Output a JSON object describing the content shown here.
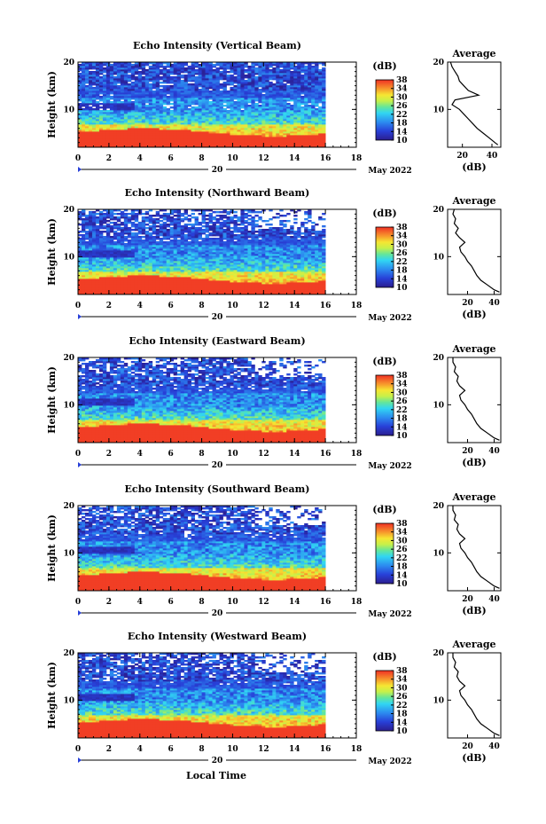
{
  "figure": {
    "xlabel": "Local Time",
    "date_label": "May 2022",
    "day_label": "20",
    "colorbar_label": "(dB)",
    "profile_title": "Average",
    "profile_xlabel": "(dB)"
  },
  "chart_data": [
    {
      "type": "heatmap",
      "title": "Echo Intensity (Vertical Beam)",
      "ylabel": "Height (km)",
      "xlabel": "",
      "x_ticks": [
        0,
        2,
        4,
        6,
        8,
        10,
        12,
        14,
        16,
        18
      ],
      "y_ticks": [
        10,
        20
      ],
      "xlim": [
        0,
        18
      ],
      "ylim": [
        2,
        20
      ],
      "data_xlim": [
        0,
        16
      ],
      "colorbar": {
        "ticks": [
          10,
          14,
          18,
          22,
          26,
          30,
          34,
          38
        ],
        "range": [
          10,
          38
        ],
        "unit": "dB"
      },
      "profile": {
        "title": "Average",
        "xlabel": "(dB)",
        "x_ticks": [
          20,
          40
        ],
        "xlim": [
          10,
          46
        ],
        "height_km": [
          2.5,
          3,
          4,
          5,
          6,
          7,
          8,
          9,
          10,
          11,
          12,
          13,
          14,
          15,
          16,
          17,
          18,
          19,
          20
        ],
        "mean_db": [
          44,
          42,
          38,
          34,
          30,
          27,
          24,
          21,
          18,
          13,
          15,
          31,
          24,
          21,
          18,
          17,
          15,
          13,
          12
        ]
      }
    },
    {
      "type": "heatmap",
      "title": "Echo Intensity (Northward Beam)",
      "ylabel": "Height (km)",
      "xlabel": "",
      "x_ticks": [
        0,
        2,
        4,
        6,
        8,
        10,
        12,
        14,
        16,
        18
      ],
      "y_ticks": [
        10,
        20
      ],
      "xlim": [
        0,
        18
      ],
      "ylim": [
        2,
        20
      ],
      "data_xlim": [
        0,
        16
      ],
      "colorbar": {
        "ticks": [
          10,
          14,
          18,
          22,
          26,
          30,
          34,
          38
        ],
        "range": [
          10,
          38
        ],
        "unit": "dB"
      },
      "profile": {
        "title": "Average",
        "xlabel": "(dB)",
        "x_ticks": [
          20,
          40
        ],
        "xlim": [
          5,
          45
        ],
        "height_km": [
          2.5,
          3,
          4,
          5,
          6,
          7,
          8,
          9,
          10,
          11,
          12,
          13,
          14,
          15,
          16,
          17,
          18,
          19,
          20
        ],
        "mean_db": [
          44,
          40,
          35,
          30,
          27,
          25,
          23,
          20,
          18,
          15,
          14,
          18,
          14,
          11,
          13,
          10,
          11,
          9,
          10
        ]
      }
    },
    {
      "type": "heatmap",
      "title": "Echo Intensity (Eastward Beam)",
      "ylabel": "Height (km)",
      "xlabel": "",
      "x_ticks": [
        0,
        2,
        4,
        6,
        8,
        10,
        12,
        14,
        16,
        18
      ],
      "y_ticks": [
        10,
        20
      ],
      "xlim": [
        0,
        18
      ],
      "ylim": [
        2,
        20
      ],
      "data_xlim": [
        0,
        16
      ],
      "colorbar": {
        "ticks": [
          10,
          14,
          18,
          22,
          26,
          30,
          34,
          38
        ],
        "range": [
          10,
          38
        ],
        "unit": "dB"
      },
      "profile": {
        "title": "Average",
        "xlabel": "(dB)",
        "x_ticks": [
          20,
          40
        ],
        "xlim": [
          5,
          45
        ],
        "height_km": [
          2.5,
          3,
          4,
          5,
          6,
          7,
          8,
          9,
          10,
          11,
          12,
          13,
          14,
          15,
          16,
          17,
          18,
          19,
          20
        ],
        "mean_db": [
          44,
          40,
          35,
          30,
          27,
          25,
          23,
          20,
          18,
          15,
          14,
          18,
          14,
          12,
          13,
          10,
          11,
          9,
          9
        ]
      }
    },
    {
      "type": "heatmap",
      "title": "Echo Intensity (Southward Beam)",
      "ylabel": "Height (km)",
      "xlabel": "",
      "x_ticks": [
        0,
        2,
        4,
        6,
        8,
        10,
        12,
        14,
        16,
        18
      ],
      "y_ticks": [
        10,
        20
      ],
      "xlim": [
        0,
        18
      ],
      "ylim": [
        2,
        20
      ],
      "data_xlim": [
        0,
        16
      ],
      "colorbar": {
        "ticks": [
          10,
          14,
          18,
          22,
          26,
          30,
          34,
          38
        ],
        "range": [
          10,
          38
        ],
        "unit": "dB"
      },
      "profile": {
        "title": "Average",
        "xlabel": "(dB)",
        "x_ticks": [
          20,
          40
        ],
        "xlim": [
          5,
          45
        ],
        "height_km": [
          2.5,
          3,
          4,
          5,
          6,
          7,
          8,
          9,
          10,
          11,
          12,
          13,
          14,
          15,
          16,
          17,
          18,
          19,
          20
        ],
        "mean_db": [
          44,
          40,
          35,
          30,
          27,
          25,
          23,
          20,
          18,
          15,
          14,
          18,
          14,
          12,
          13,
          10,
          11,
          9,
          9
        ]
      }
    },
    {
      "type": "heatmap",
      "title": "Echo Intensity (Westward Beam)",
      "ylabel": "Height (km)",
      "xlabel": "Local Time",
      "x_ticks": [
        0,
        2,
        4,
        6,
        8,
        10,
        12,
        14,
        16,
        18
      ],
      "y_ticks": [
        10,
        20
      ],
      "xlim": [
        0,
        18
      ],
      "ylim": [
        2,
        20
      ],
      "data_xlim": [
        0,
        16
      ],
      "colorbar": {
        "ticks": [
          10,
          14,
          18,
          22,
          26,
          30,
          34,
          38
        ],
        "range": [
          10,
          38
        ],
        "unit": "dB"
      },
      "profile": {
        "title": "Average",
        "xlabel": "(dB)",
        "x_ticks": [
          20,
          40
        ],
        "xlim": [
          5,
          45
        ],
        "height_km": [
          2.5,
          3,
          4,
          5,
          6,
          7,
          8,
          9,
          10,
          11,
          12,
          13,
          14,
          15,
          16,
          17,
          18,
          19,
          20
        ],
        "mean_db": [
          44,
          40,
          35,
          30,
          27,
          25,
          23,
          20,
          18,
          15,
          14,
          18,
          14,
          12,
          13,
          10,
          11,
          9,
          9
        ]
      }
    }
  ]
}
